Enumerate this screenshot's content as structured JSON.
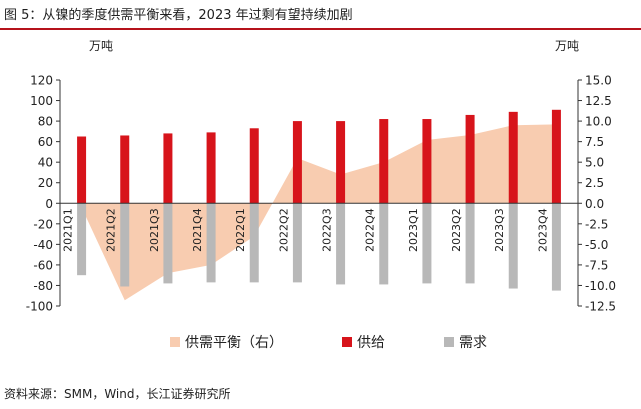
{
  "title": "图 5：从镍的季度供需平衡来看，2023 年过剩有望持续加剧",
  "source": "资料来源：SMM，Wind，长江证券研究所",
  "colors": {
    "supply": "#d7141b",
    "demand": "#b8b8b8",
    "balance": "#f8ccb0",
    "accent_rule": "#b5121b"
  },
  "chart_data": {
    "type": "bar",
    "categories": [
      "2021Q1",
      "2021Q2",
      "2021Q3",
      "2021Q4",
      "2022Q1",
      "2022Q2",
      "2022Q3",
      "2022Q4",
      "2023Q1",
      "2023Q2",
      "2023Q3",
      "2023Q4"
    ],
    "y_left": {
      "unit": "万吨",
      "min": -100,
      "max": 120,
      "step": 20,
      "ticks": [
        "120",
        "100",
        "80",
        "60",
        "40",
        "20",
        "0",
        "-20",
        "-40",
        "-60",
        "-80",
        "-100"
      ]
    },
    "y_right": {
      "unit": "万吨",
      "min": -12.5,
      "max": 15,
      "step": 2.5,
      "ticks": [
        "15.0",
        "12.5",
        "10.0",
        "7.5",
        "5.0",
        "2.5",
        "0.0",
        "-2.5",
        "-5.0",
        "-7.5",
        "-10.0",
        "-12.5"
      ]
    },
    "series": [
      {
        "name": "供给",
        "kind": "bar",
        "axis": "left",
        "values": [
          65,
          66,
          68,
          69,
          73,
          80,
          80,
          82,
          82,
          86,
          89,
          91
        ]
      },
      {
        "name": "需求",
        "kind": "bar",
        "axis": "left",
        "values": [
          -70,
          -81,
          -78,
          -77,
          -77,
          -77,
          -79,
          -79,
          -78,
          -78,
          -83,
          -85
        ]
      },
      {
        "name": "供需平衡（右）",
        "kind": "area",
        "axis": "right",
        "values": [
          -0.5,
          -11.8,
          -8.5,
          -7.5,
          -4.0,
          5.5,
          3.5,
          5.0,
          7.7,
          8.3,
          9.5,
          9.6
        ]
      }
    ],
    "legend": {
      "placement": "bottom",
      "entries": [
        "供需平衡（右）",
        "供给",
        "需求"
      ]
    },
    "grid": false
  }
}
